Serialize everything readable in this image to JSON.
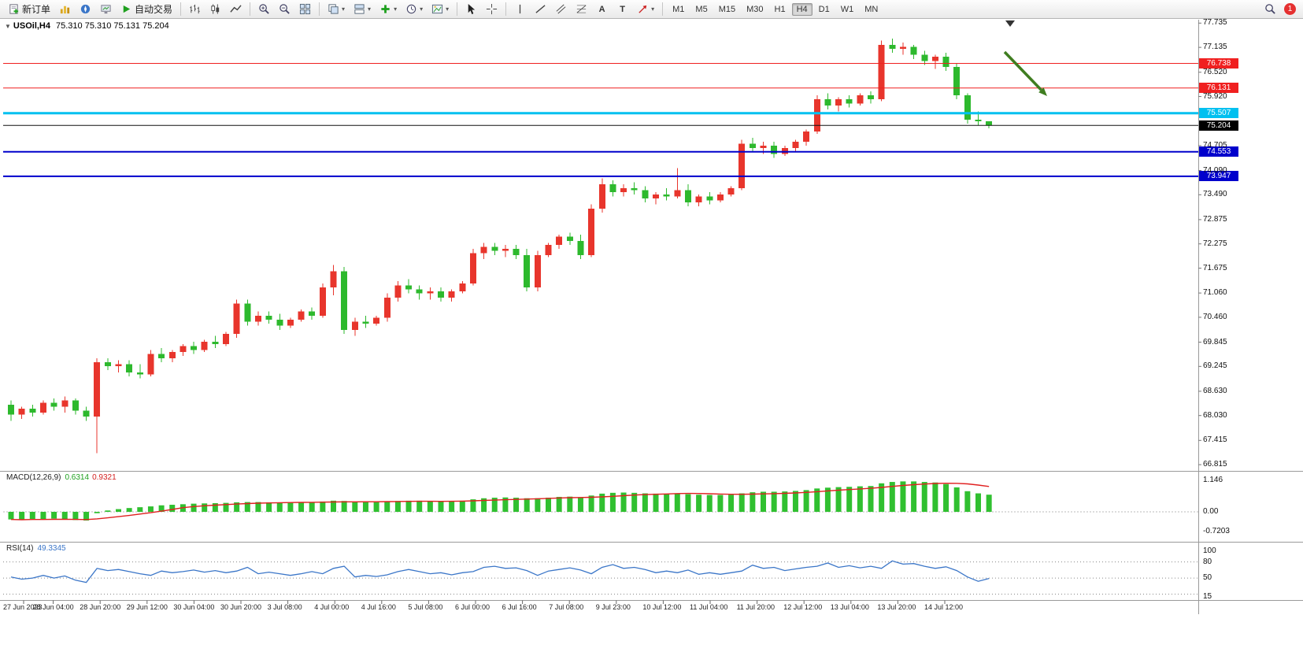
{
  "toolbar": {
    "new_order_label": "新订单",
    "autotrading_label": "自动交易",
    "text_tool_glyph": "A",
    "label_tool_glyph": "T",
    "timeframes": [
      "M1",
      "M5",
      "M15",
      "M30",
      "H1",
      "H4",
      "D1",
      "W1",
      "MN"
    ],
    "active_timeframe": "H4",
    "notification_count": "1"
  },
  "chart": {
    "type": "candlestick",
    "symbol_label": "USOil,H4",
    "ohlc_label": "75.310 75.310 75.131 75.204",
    "up_color": "#e8352c",
    "down_color": "#2db92d",
    "axis_range": {
      "top_price": 77.8,
      "bottom_price": 66.7
    },
    "price_axis": [
      "77.735",
      "77.135",
      "76.520",
      "75.920",
      "74.705",
      "74.090",
      "73.490",
      "72.875",
      "72.275",
      "71.675",
      "71.060",
      "70.460",
      "69.845",
      "69.245",
      "68.630",
      "68.030",
      "67.415",
      "66.815"
    ],
    "hlines": [
      {
        "price": 76.738,
        "label": "76.738",
        "color": "#f02020",
        "width": 1
      },
      {
        "price": 76.131,
        "label": "76.131",
        "color": "#f02020",
        "width": 1
      },
      {
        "price": 75.507,
        "label": "75.507",
        "color": "#00c0f0",
        "width": 3
      },
      {
        "price": 74.553,
        "label": "74.553",
        "color": "#0000cc",
        "width": 2
      },
      {
        "price": 73.947,
        "label": "73.947",
        "color": "#0000cc",
        "width": 2
      }
    ],
    "bid_line": {
      "price": 75.204,
      "label": "75.204",
      "color": "#111111"
    },
    "candles": [
      [
        68.3,
        68.4,
        67.9,
        68.05
      ],
      [
        68.05,
        68.25,
        67.95,
        68.2
      ],
      [
        68.2,
        68.3,
        68.0,
        68.1
      ],
      [
        68.1,
        68.4,
        68.05,
        68.35
      ],
      [
        68.35,
        68.45,
        68.15,
        68.25
      ],
      [
        68.25,
        68.5,
        68.1,
        68.4
      ],
      [
        68.4,
        68.45,
        68.05,
        68.15
      ],
      [
        68.15,
        68.25,
        67.9,
        68.0
      ],
      [
        68.0,
        69.45,
        67.1,
        69.35
      ],
      [
        69.35,
        69.45,
        69.15,
        69.25
      ],
      [
        69.25,
        69.4,
        69.1,
        69.3
      ],
      [
        69.3,
        69.4,
        69.0,
        69.1
      ],
      [
        69.1,
        69.3,
        68.95,
        69.05
      ],
      [
        69.05,
        69.65,
        69.0,
        69.55
      ],
      [
        69.55,
        69.7,
        69.35,
        69.45
      ],
      [
        69.45,
        69.65,
        69.35,
        69.6
      ],
      [
        69.6,
        69.8,
        69.5,
        69.75
      ],
      [
        69.75,
        69.85,
        69.55,
        69.65
      ],
      [
        69.65,
        69.9,
        69.6,
        69.85
      ],
      [
        69.85,
        70.0,
        69.7,
        69.8
      ],
      [
        69.8,
        70.1,
        69.75,
        70.05
      ],
      [
        70.05,
        70.9,
        69.95,
        70.8
      ],
      [
        70.8,
        70.9,
        70.25,
        70.35
      ],
      [
        70.35,
        70.6,
        70.25,
        70.5
      ],
      [
        70.5,
        70.6,
        70.3,
        70.4
      ],
      [
        70.4,
        70.55,
        70.15,
        70.25
      ],
      [
        70.25,
        70.45,
        70.2,
        70.4
      ],
      [
        70.4,
        70.65,
        70.35,
        70.6
      ],
      [
        70.6,
        70.7,
        70.4,
        70.5
      ],
      [
        70.5,
        71.3,
        70.45,
        71.2
      ],
      [
        71.2,
        71.75,
        71.0,
        71.6
      ],
      [
        71.6,
        71.7,
        70.05,
        70.15
      ],
      [
        70.15,
        70.45,
        70.0,
        70.35
      ],
      [
        70.35,
        70.5,
        70.2,
        70.3
      ],
      [
        70.3,
        70.5,
        70.25,
        70.45
      ],
      [
        70.45,
        71.05,
        70.35,
        70.95
      ],
      [
        70.95,
        71.35,
        70.85,
        71.25
      ],
      [
        71.25,
        71.4,
        71.05,
        71.15
      ],
      [
        71.15,
        71.25,
        70.9,
        71.05
      ],
      [
        71.05,
        71.2,
        70.9,
        71.1
      ],
      [
        71.1,
        71.2,
        70.85,
        70.95
      ],
      [
        70.95,
        71.15,
        70.85,
        71.1
      ],
      [
        71.1,
        71.35,
        71.05,
        71.3
      ],
      [
        71.3,
        72.15,
        71.25,
        72.05
      ],
      [
        72.05,
        72.3,
        71.9,
        72.2
      ],
      [
        72.2,
        72.3,
        72.0,
        72.1
      ],
      [
        72.1,
        72.25,
        71.95,
        72.15
      ],
      [
        72.15,
        72.25,
        71.9,
        72.0
      ],
      [
        72.0,
        72.15,
        71.1,
        71.2
      ],
      [
        71.2,
        72.1,
        71.1,
        72.0
      ],
      [
        72.0,
        72.3,
        71.95,
        72.25
      ],
      [
        72.25,
        72.5,
        72.15,
        72.45
      ],
      [
        72.45,
        72.55,
        72.25,
        72.35
      ],
      [
        72.35,
        72.5,
        71.9,
        72.0
      ],
      [
        72.0,
        73.25,
        71.95,
        73.15
      ],
      [
        73.15,
        73.9,
        73.05,
        73.75
      ],
      [
        73.75,
        73.85,
        73.45,
        73.55
      ],
      [
        73.55,
        73.75,
        73.45,
        73.65
      ],
      [
        73.65,
        73.8,
        73.5,
        73.6
      ],
      [
        73.6,
        73.7,
        73.3,
        73.4
      ],
      [
        73.4,
        73.55,
        73.25,
        73.5
      ],
      [
        73.5,
        73.65,
        73.35,
        73.45
      ],
      [
        73.45,
        74.15,
        73.4,
        73.6
      ],
      [
        73.6,
        73.75,
        73.2,
        73.3
      ],
      [
        73.3,
        73.5,
        73.2,
        73.45
      ],
      [
        73.45,
        73.55,
        73.25,
        73.35
      ],
      [
        73.35,
        73.55,
        73.3,
        73.5
      ],
      [
        73.5,
        73.7,
        73.45,
        73.65
      ],
      [
        73.65,
        74.85,
        73.6,
        74.75
      ],
      [
        74.75,
        74.9,
        74.55,
        74.65
      ],
      [
        74.65,
        74.8,
        74.5,
        74.7
      ],
      [
        74.7,
        74.8,
        74.4,
        74.5
      ],
      [
        74.5,
        74.7,
        74.45,
        74.65
      ],
      [
        74.65,
        74.85,
        74.55,
        74.8
      ],
      [
        74.8,
        75.1,
        74.7,
        75.05
      ],
      [
        75.05,
        75.95,
        75.0,
        75.85
      ],
      [
        75.85,
        76.0,
        75.6,
        75.7
      ],
      [
        75.7,
        75.9,
        75.55,
        75.85
      ],
      [
        75.85,
        75.95,
        75.65,
        75.75
      ],
      [
        75.75,
        76.0,
        75.7,
        75.95
      ],
      [
        75.95,
        76.05,
        75.75,
        75.85
      ],
      [
        75.85,
        77.3,
        75.8,
        77.2
      ],
      [
        77.2,
        77.35,
        77.0,
        77.1
      ],
      [
        77.1,
        77.25,
        76.95,
        77.15
      ],
      [
        77.15,
        77.2,
        76.85,
        76.95
      ],
      [
        76.95,
        77.05,
        76.7,
        76.8
      ],
      [
        76.8,
        76.95,
        76.6,
        76.9
      ],
      [
        76.9,
        77.0,
        76.55,
        76.65
      ],
      [
        76.65,
        76.75,
        75.85,
        75.95
      ],
      [
        75.95,
        76.0,
        75.25,
        75.35
      ],
      [
        75.35,
        75.55,
        75.2,
        75.31
      ],
      [
        75.31,
        75.31,
        75.131,
        75.204
      ]
    ],
    "time_labels": [
      "27 Jun 2023",
      "28 Jun 04:00",
      "28 Jun 20:00",
      "29 Jun 12:00",
      "30 Jun 04:00",
      "30 Jun 20:00",
      "3 Jul 08:00",
      "4 Jul 00:00",
      "4 Jul 16:00",
      "5 Jul 08:00",
      "6 Jul 00:00",
      "6 Jul 16:00",
      "7 Jul 08:00",
      "9 Jul 23:00",
      "10 Jul 12:00",
      "11 Jul 04:00",
      "11 Jul 20:00",
      "12 Jul 12:00",
      "13 Jul 04:00",
      "13 Jul 20:00",
      "14 Jul 12:00"
    ]
  },
  "macd": {
    "label": "MACD(12,26,9)",
    "value_main": "0.6314",
    "value_signal": "0.9321",
    "scale": [
      "1.146",
      "0.00",
      "-0.7203"
    ],
    "hist_color": "#30c030",
    "signal_color": "#e02020",
    "histogram": [
      -0.28,
      -0.3,
      -0.26,
      -0.29,
      -0.25,
      -0.27,
      -0.3,
      -0.32,
      -0.05,
      0.05,
      0.1,
      0.14,
      0.17,
      0.2,
      0.24,
      0.26,
      0.28,
      0.3,
      0.31,
      0.32,
      0.33,
      0.35,
      0.36,
      0.36,
      0.35,
      0.34,
      0.35,
      0.36,
      0.36,
      0.38,
      0.41,
      0.4,
      0.37,
      0.36,
      0.36,
      0.38,
      0.4,
      0.41,
      0.41,
      0.4,
      0.39,
      0.39,
      0.41,
      0.46,
      0.5,
      0.52,
      0.53,
      0.52,
      0.5,
      0.5,
      0.52,
      0.55,
      0.56,
      0.54,
      0.6,
      0.67,
      0.7,
      0.71,
      0.7,
      0.68,
      0.67,
      0.66,
      0.67,
      0.65,
      0.63,
      0.62,
      0.62,
      0.63,
      0.68,
      0.72,
      0.74,
      0.74,
      0.75,
      0.77,
      0.8,
      0.86,
      0.89,
      0.91,
      0.92,
      0.94,
      0.95,
      1.05,
      1.1,
      1.12,
      1.12,
      1.1,
      1.08,
      1.02,
      0.9,
      0.76,
      0.68,
      0.6314
    ]
  },
  "rsi": {
    "label": "RSI(14)",
    "value": "49.3345",
    "scale": [
      "100",
      "80",
      "50",
      "15"
    ],
    "levels": [
      80,
      50,
      20
    ],
    "line_color": "#3b76c8",
    "values": [
      52,
      48,
      50,
      55,
      50,
      54,
      46,
      42,
      68,
      64,
      66,
      62,
      58,
      55,
      63,
      60,
      62,
      65,
      61,
      64,
      60,
      63,
      70,
      58,
      61,
      58,
      55,
      58,
      62,
      58,
      68,
      72,
      52,
      55,
      53,
      56,
      62,
      66,
      62,
      58,
      60,
      56,
      60,
      62,
      70,
      72,
      68,
      69,
      64,
      55,
      63,
      66,
      69,
      65,
      58,
      70,
      75,
      68,
      70,
      66,
      60,
      63,
      60,
      65,
      57,
      60,
      57,
      60,
      63,
      74,
      68,
      70,
      64,
      67,
      70,
      72,
      78,
      70,
      73,
      69,
      72,
      68,
      82,
      76,
      77,
      72,
      68,
      71,
      64,
      52,
      44,
      49.33
    ]
  },
  "annotation": {
    "arrow_color": "#3f7d20"
  }
}
